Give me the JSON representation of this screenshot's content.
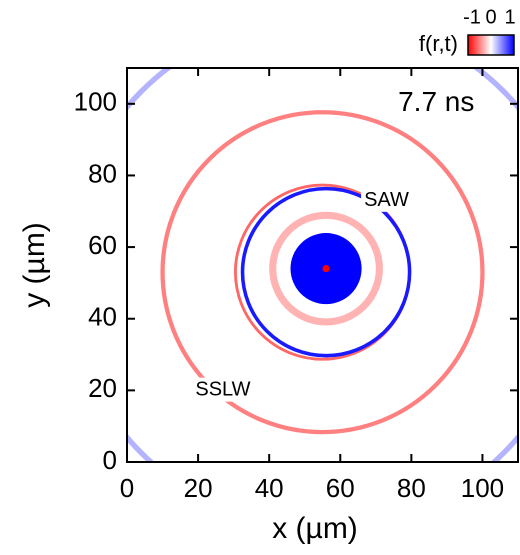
{
  "chart_data": {
    "type": "heatmap",
    "xlabel": "x (µm)",
    "ylabel": "y (µm)",
    "xlim": [
      0,
      110
    ],
    "ylim": [
      0,
      110
    ],
    "xticks": [
      0,
      20,
      40,
      60,
      80,
      100
    ],
    "yticks": [
      0,
      20,
      40,
      60,
      80,
      100
    ],
    "colormap": [
      "#ff0000",
      "#ffffff",
      "#0000ff"
    ],
    "colorbar_label": "f(r,t)",
    "colorbar_ticks": [
      -1,
      0,
      1
    ],
    "annotations": [
      {
        "text": "7.7 ns",
        "x": 87,
        "y": 100
      },
      {
        "text": "SAW",
        "x": 73,
        "y": 73
      },
      {
        "text": "SSLW",
        "x": 27,
        "y": 20
      }
    ],
    "rings": [
      {
        "cx": 55,
        "cy": 53,
        "r": 72,
        "width": 1.5,
        "value": 0.3
      },
      {
        "cx": 55,
        "cy": 53,
        "r": 45,
        "width": 1.2,
        "value": -0.5
      },
      {
        "cx": 55,
        "cy": 53,
        "r": 24.5,
        "width": 0.8,
        "value": -0.6
      },
      {
        "cx": 56,
        "cy": 53,
        "r": 23.5,
        "width": 1,
        "value": 0.9
      },
      {
        "cx": 56,
        "cy": 54,
        "r": 15,
        "width": 2,
        "value": -0.3
      },
      {
        "cx": 56,
        "cy": 54,
        "r": 10,
        "width": 20,
        "value": 1
      },
      {
        "cx": 56,
        "cy": 54,
        "r": 1,
        "width": 2,
        "value": -1
      }
    ]
  }
}
